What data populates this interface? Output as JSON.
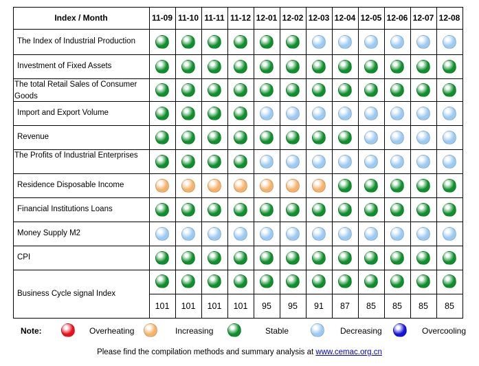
{
  "header": {
    "corner": "Index / Month",
    "months": [
      "11-09",
      "11-10",
      "11-11",
      "11-12",
      "12-01",
      "12-02",
      "12-03",
      "12-04",
      "12-05",
      "12-06",
      "12-07",
      "12-08"
    ]
  },
  "colors": {
    "G": "#0e8f2c",
    "B": "#9ccaf2",
    "O": "#f5b26a",
    "R": "#e8101a",
    "D": "#1515d8"
  },
  "rows": [
    {
      "label": "The Index of Industrial Production",
      "signals": [
        "G",
        "G",
        "G",
        "G",
        "G",
        "G",
        "B",
        "B",
        "B",
        "B",
        "B",
        "B"
      ]
    },
    {
      "label": "Investment of Fixed Assets",
      "signals": [
        "G",
        "G",
        "G",
        "G",
        "G",
        "G",
        "G",
        "G",
        "G",
        "G",
        "G",
        "G"
      ]
    },
    {
      "label": "The total Retail Sales of Consumer Goods",
      "signals": [
        "G",
        "G",
        "G",
        "G",
        "G",
        "G",
        "G",
        "G",
        "G",
        "G",
        "G",
        "G"
      ]
    },
    {
      "label": "Import and Export Volume",
      "signals": [
        "G",
        "G",
        "G",
        "G",
        "B",
        "B",
        "B",
        "B",
        "B",
        "B",
        "B",
        "B"
      ]
    },
    {
      "label": "Revenue",
      "signals": [
        "G",
        "G",
        "G",
        "G",
        "G",
        "G",
        "G",
        "G",
        "B",
        "B",
        "B",
        "B"
      ]
    },
    {
      "label": "The Profits of Industrial Enterprises",
      "signals": [
        "G",
        "G",
        "G",
        "G",
        "B",
        "B",
        "B",
        "B",
        "B",
        "B",
        "B",
        "B"
      ]
    },
    {
      "label": "Residence Disposable Income",
      "signals": [
        "O",
        "O",
        "O",
        "O",
        "O",
        "O",
        "O",
        "G",
        "G",
        "G",
        "G",
        "G"
      ]
    },
    {
      "label": "Financial Institutions Loans",
      "signals": [
        "G",
        "G",
        "G",
        "G",
        "G",
        "G",
        "G",
        "G",
        "G",
        "G",
        "G",
        "G"
      ]
    },
    {
      "label": "Money Supply M2",
      "signals": [
        "B",
        "B",
        "B",
        "B",
        "B",
        "B",
        "B",
        "B",
        "B",
        "B",
        "B",
        "B"
      ]
    },
    {
      "label": "CPI",
      "signals": [
        "G",
        "G",
        "G",
        "G",
        "G",
        "G",
        "G",
        "G",
        "G",
        "G",
        "G",
        "G"
      ]
    }
  ],
  "business_cycle": {
    "label": "Business Cycle signal Index",
    "signals": [
      "G",
      "G",
      "G",
      "G",
      "G",
      "G",
      "G",
      "G",
      "G",
      "G",
      "G",
      "G"
    ],
    "values": [
      "101",
      "101",
      "101",
      "101",
      "95",
      "95",
      "91",
      "87",
      "85",
      "85",
      "85",
      "85"
    ]
  },
  "legend": {
    "note": "Note:",
    "items": [
      {
        "label": "Overheating",
        "color": "R"
      },
      {
        "label": "Increasing",
        "color": "O"
      },
      {
        "label": "Stable",
        "color": "G"
      },
      {
        "label": "Decreasing",
        "color": "B"
      },
      {
        "label": "Overcooling",
        "color": "D"
      }
    ]
  },
  "footer": {
    "text": "Please find the compilation methods and summary analysis at ",
    "link": "www.cemac.org.cn"
  }
}
